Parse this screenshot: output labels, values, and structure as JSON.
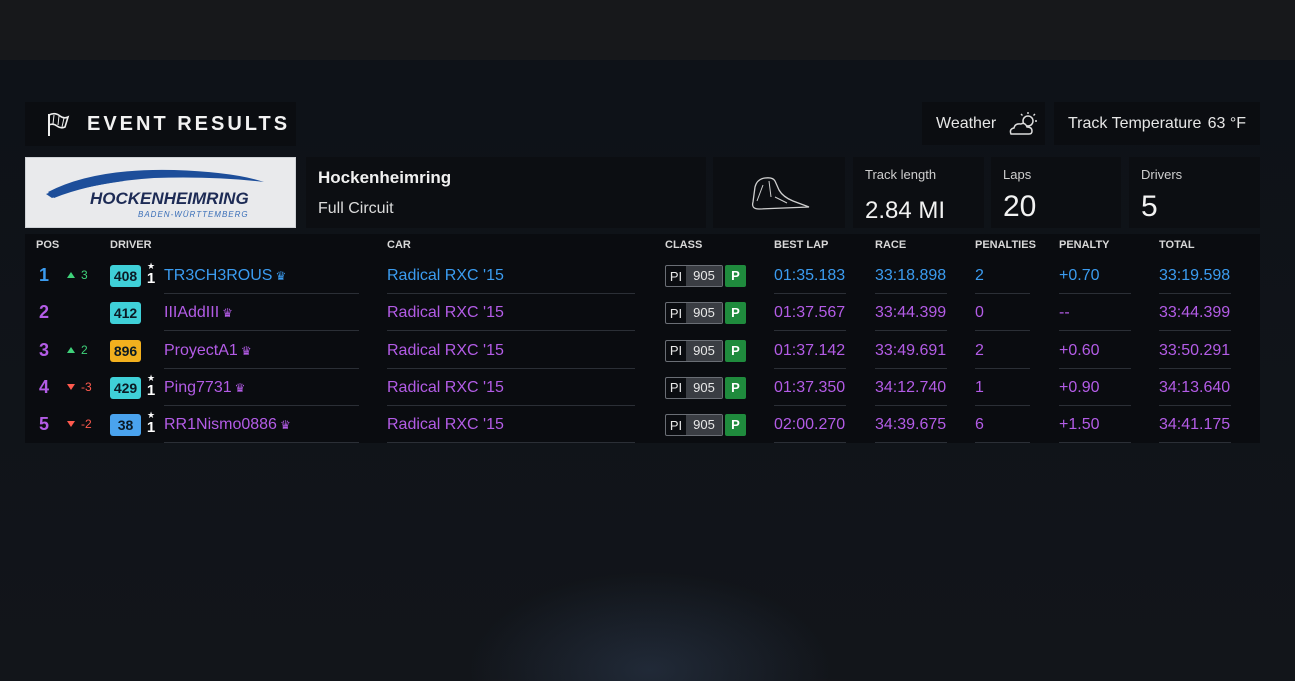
{
  "header": {
    "title": "EVENT RESULTS",
    "weather_label": "Weather",
    "weather_icon": "partly-cloudy-icon",
    "track_temp_label": "Track Temperature",
    "track_temp_value": "63 °F"
  },
  "track": {
    "logo_text": "HOCKENHEIMRING",
    "logo_subtext": "BADEN-WÜRTTEMBERG",
    "name": "Hockenheimring",
    "layout": "Full Circuit",
    "stats": {
      "length_label": "Track length",
      "length_value": "2.84 MI",
      "laps_label": "Laps",
      "laps_value": "20",
      "drivers_label": "Drivers",
      "drivers_value": "5"
    }
  },
  "table": {
    "headers": {
      "pos": "POS",
      "driver": "DRIVER",
      "car": "CAR",
      "class": "CLASS",
      "best_lap": "BEST LAP",
      "race": "RACE",
      "penalties": "PENALTIES",
      "penalty": "PENALTY",
      "total": "TOTAL"
    },
    "rows": [
      {
        "pos": "1",
        "change": "3",
        "change_dir": "up",
        "rating": "408",
        "rating_color": "#3fd0d8",
        "star": true,
        "star_num": "1",
        "driver": "TR3CH3ROUS",
        "car": "Radical RXC '15",
        "pi_label": "PI",
        "pi_value": "905",
        "class": "P",
        "best_lap": "01:35.183",
        "race": "33:18.898",
        "penalties": "2",
        "penalty": "+0.70",
        "total": "33:19.598",
        "highlight": true
      },
      {
        "pos": "2",
        "change": "",
        "change_dir": "",
        "rating": "412",
        "rating_color": "#3fd0d8",
        "star": false,
        "star_num": "",
        "driver": "IIIAddIII",
        "car": "Radical RXC '15",
        "pi_label": "PI",
        "pi_value": "905",
        "class": "P",
        "best_lap": "01:37.567",
        "race": "33:44.399",
        "penalties": "0",
        "penalty": "--",
        "total": "33:44.399",
        "highlight": false
      },
      {
        "pos": "3",
        "change": "2",
        "change_dir": "up",
        "rating": "896",
        "rating_color": "#f2b01e",
        "star": false,
        "star_num": "",
        "driver": "ProyectA1",
        "car": "Radical RXC '15",
        "pi_label": "PI",
        "pi_value": "905",
        "class": "P",
        "best_lap": "01:37.142",
        "race": "33:49.691",
        "penalties": "2",
        "penalty": "+0.60",
        "total": "33:50.291",
        "highlight": false
      },
      {
        "pos": "4",
        "change": "-3",
        "change_dir": "down",
        "rating": "429",
        "rating_color": "#3fd0d8",
        "star": true,
        "star_num": "1",
        "driver": "Ping7731",
        "car": "Radical RXC '15",
        "pi_label": "PI",
        "pi_value": "905",
        "class": "P",
        "best_lap": "01:37.350",
        "race": "34:12.740",
        "penalties": "1",
        "penalty": "+0.90",
        "total": "34:13.640",
        "highlight": false
      },
      {
        "pos": "5",
        "change": "-2",
        "change_dir": "down",
        "rating": "38",
        "rating_color": "#4aa3ee",
        "star": true,
        "star_num": "1",
        "driver": "RR1Nismo0886",
        "car": "Radical RXC '15",
        "pi_label": "PI",
        "pi_value": "905",
        "class": "P",
        "best_lap": "02:00.270",
        "race": "34:39.675",
        "penalties": "6",
        "penalty": "+1.50",
        "total": "34:41.175",
        "highlight": false
      }
    ]
  },
  "colors": {
    "highlight_blue": "#3b9cf0",
    "purple": "#b35ce6",
    "up": "#3fd27a",
    "down": "#ff5a4e",
    "class_green": "#1f8b3d"
  }
}
